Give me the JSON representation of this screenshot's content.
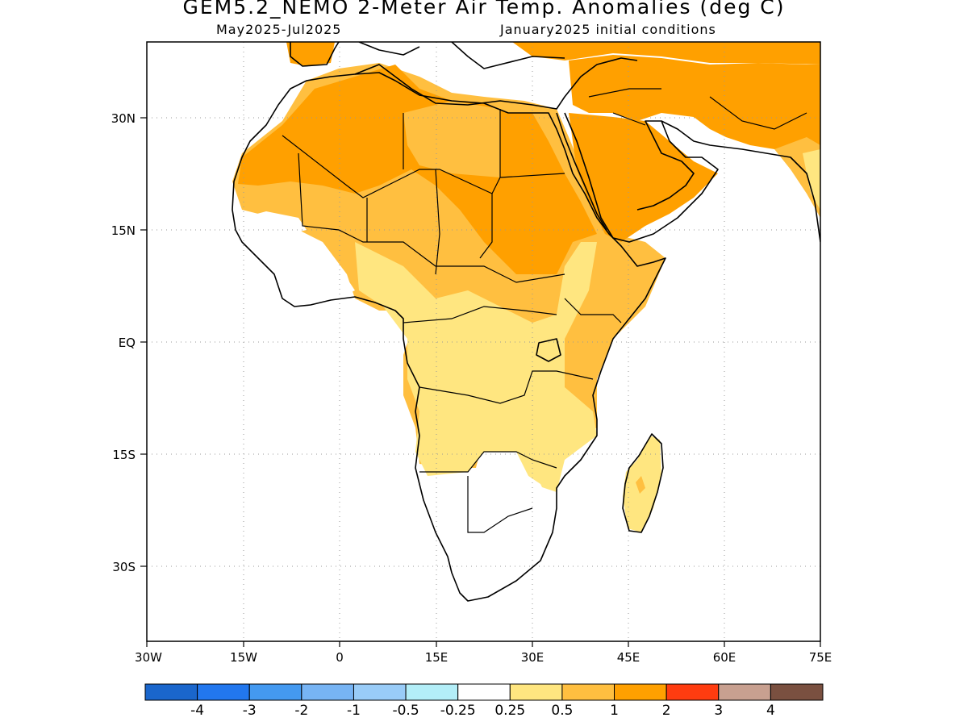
{
  "title": "GEM5.2_NEMO 2-Meter Air Temp. Anomalies (deg C)",
  "subtitle_left": "May2025-Jul2025",
  "subtitle_right": "January2025 initial conditions",
  "axes": {
    "lat_labels": [
      "30N",
      "15N",
      "EQ",
      "15S",
      "30S"
    ],
    "lon_labels": [
      "30W",
      "15W",
      "0",
      "15E",
      "30E",
      "45E",
      "60E",
      "75E"
    ]
  },
  "legend": {
    "colors": [
      "#1a66cc",
      "#2277ee",
      "#4499f0",
      "#77b4f4",
      "#99ccf8",
      "#b3eef8",
      "#ffffff",
      "#ffe680",
      "#ffbf40",
      "#ffa000",
      "#ff3c10",
      "#c8a090",
      "#7a5040"
    ],
    "labels": [
      "-4",
      "-3",
      "-2",
      "-1",
      "-0.5",
      "-0.25",
      "0.25",
      "0.5",
      "1",
      "2",
      "3",
      "4"
    ]
  },
  "colors": {
    "anom_0_25_0_5": "#ffe680",
    "anom_0_5_1": "#ffbf40",
    "anom_1_2": "#ffa000"
  }
}
